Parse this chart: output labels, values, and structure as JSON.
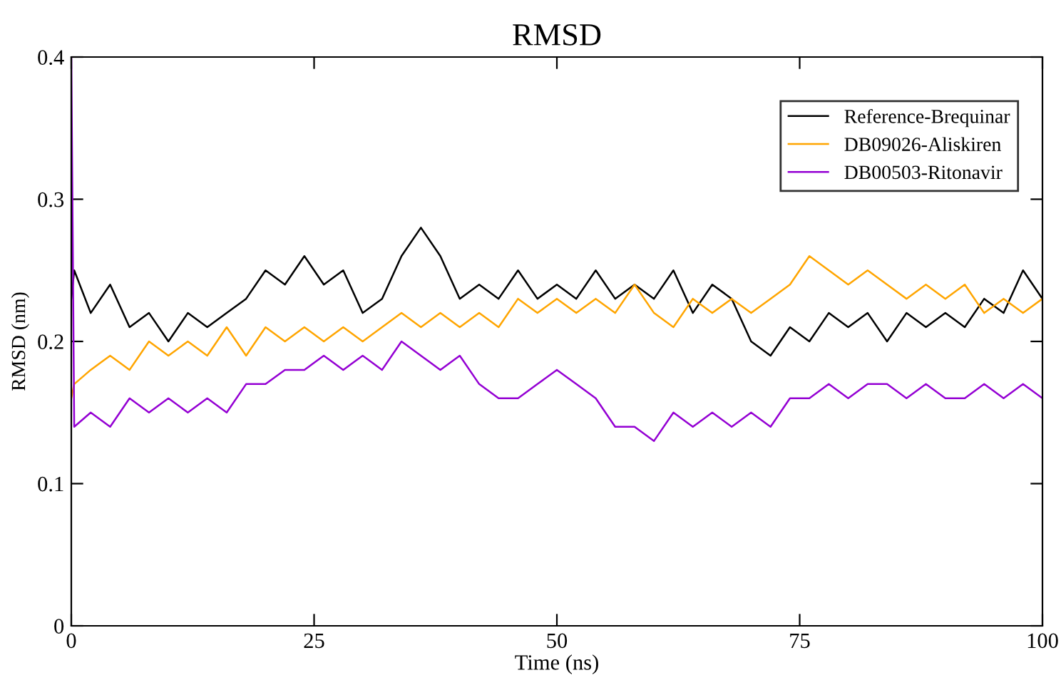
{
  "chart_data": {
    "type": "line",
    "title": "RMSD",
    "xlabel": "Time (ns)",
    "ylabel": "RMSD (nm)",
    "x": [
      0,
      0.3,
      2,
      4,
      6,
      8,
      10,
      12,
      14,
      16,
      18,
      20,
      22,
      24,
      26,
      28,
      30,
      32,
      34,
      36,
      38,
      40,
      42,
      44,
      46,
      48,
      50,
      52,
      54,
      56,
      58,
      60,
      62,
      64,
      66,
      68,
      70,
      72,
      74,
      76,
      78,
      80,
      82,
      84,
      86,
      88,
      90,
      92,
      94,
      96,
      98,
      100
    ],
    "series": [
      {
        "name": "Reference-Brequinar",
        "color": "#000000",
        "values": [
          0.23,
          0.25,
          0.22,
          0.24,
          0.21,
          0.22,
          0.2,
          0.22,
          0.21,
          0.22,
          0.23,
          0.25,
          0.24,
          0.26,
          0.24,
          0.25,
          0.22,
          0.23,
          0.26,
          0.28,
          0.26,
          0.23,
          0.24,
          0.23,
          0.25,
          0.23,
          0.24,
          0.23,
          0.25,
          0.23,
          0.24,
          0.23,
          0.25,
          0.22,
          0.24,
          0.23,
          0.2,
          0.19,
          0.21,
          0.2,
          0.22,
          0.21,
          0.22,
          0.2,
          0.22,
          0.21,
          0.22,
          0.21,
          0.23,
          0.22,
          0.25,
          0.23
        ]
      },
      {
        "name": "DB09026-Aliskiren",
        "color": "#ffa500",
        "values": [
          0.16,
          0.17,
          0.18,
          0.19,
          0.18,
          0.2,
          0.19,
          0.2,
          0.19,
          0.21,
          0.19,
          0.21,
          0.2,
          0.21,
          0.2,
          0.21,
          0.2,
          0.21,
          0.22,
          0.21,
          0.22,
          0.21,
          0.22,
          0.21,
          0.23,
          0.22,
          0.23,
          0.22,
          0.23,
          0.22,
          0.24,
          0.22,
          0.21,
          0.23,
          0.22,
          0.23,
          0.22,
          0.23,
          0.24,
          0.26,
          0.25,
          0.24,
          0.25,
          0.24,
          0.23,
          0.24,
          0.23,
          0.24,
          0.22,
          0.23,
          0.22,
          0.23
        ]
      },
      {
        "name": "DB00503-Ritonavir",
        "color": "#9400d3",
        "values": [
          0.4,
          0.14,
          0.15,
          0.14,
          0.16,
          0.15,
          0.16,
          0.15,
          0.16,
          0.15,
          0.17,
          0.17,
          0.18,
          0.18,
          0.19,
          0.18,
          0.19,
          0.18,
          0.2,
          0.19,
          0.18,
          0.19,
          0.17,
          0.16,
          0.16,
          0.17,
          0.18,
          0.17,
          0.16,
          0.14,
          0.14,
          0.13,
          0.15,
          0.14,
          0.15,
          0.14,
          0.15,
          0.14,
          0.16,
          0.16,
          0.17,
          0.16,
          0.17,
          0.17,
          0.16,
          0.17,
          0.16,
          0.16,
          0.17,
          0.16,
          0.17,
          0.16
        ]
      }
    ],
    "xlim": [
      0,
      100
    ],
    "xticks": [
      0,
      25,
      50,
      75,
      100
    ],
    "ylim": [
      0,
      0.4
    ],
    "yticks": [
      0,
      0.1,
      0.2,
      0.3,
      0.4
    ],
    "legend": "top right",
    "grid": false
  }
}
